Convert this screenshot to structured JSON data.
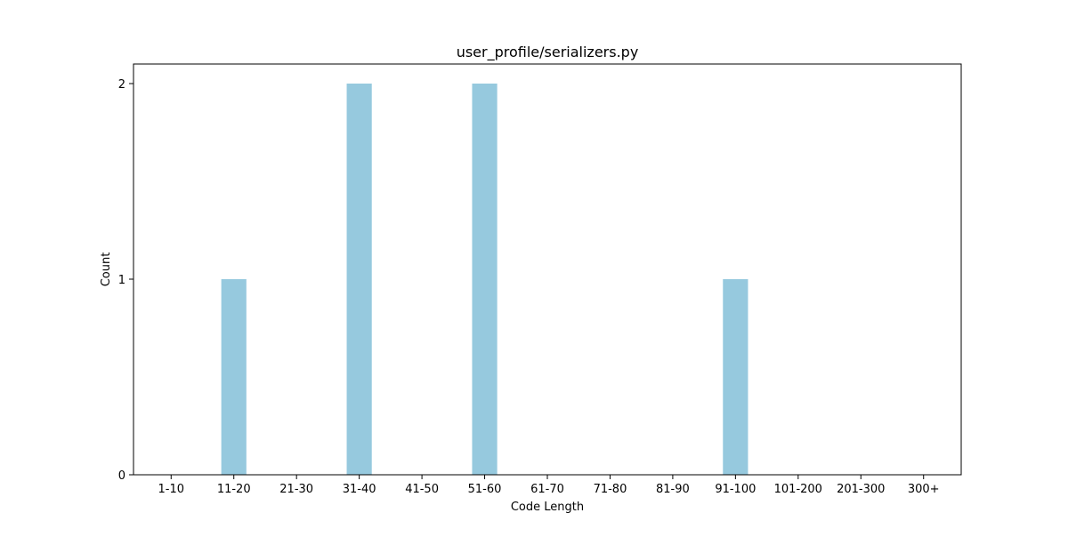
{
  "chart_data": {
    "type": "bar",
    "title": "user_profile/serializers.py",
    "xlabel": "Code Length",
    "ylabel": "Count",
    "categories": [
      "1-10",
      "11-20",
      "21-30",
      "31-40",
      "41-50",
      "51-60",
      "61-70",
      "71-80",
      "81-90",
      "91-100",
      "101-200",
      "201-300",
      "300+"
    ],
    "values": [
      0,
      1,
      0,
      2,
      0,
      2,
      0,
      0,
      0,
      1,
      0,
      0,
      0
    ],
    "ylim": [
      0,
      2.1
    ],
    "yticks": [
      0,
      1,
      2
    ],
    "bar_color": "#96c9de",
    "grid": false,
    "legend": null
  }
}
